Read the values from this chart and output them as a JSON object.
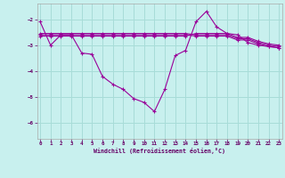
{
  "background_color": "#c8f0ee",
  "grid_color": "#a8dcd8",
  "line_color": "#990099",
  "xlabel": "Windchill (Refroidissement éolien,°C)",
  "xlim": [
    -0.3,
    23.3
  ],
  "ylim": [
    -6.6,
    -1.4
  ],
  "yticks": [
    -6,
    -5,
    -4,
    -3,
    -2
  ],
  "xticks": [
    0,
    1,
    2,
    3,
    4,
    5,
    6,
    7,
    8,
    9,
    10,
    11,
    12,
    13,
    14,
    15,
    16,
    17,
    18,
    19,
    20,
    21,
    22,
    23
  ],
  "x": [
    0,
    1,
    2,
    3,
    4,
    5,
    6,
    7,
    8,
    9,
    10,
    11,
    12,
    13,
    14,
    15,
    16,
    17,
    18,
    19,
    20,
    21,
    22,
    23
  ],
  "y_main": [
    -2.1,
    -3.0,
    -2.6,
    -2.6,
    -3.3,
    -3.35,
    -4.2,
    -4.5,
    -4.7,
    -5.05,
    -5.2,
    -5.55,
    -4.7,
    -3.4,
    -3.2,
    -2.1,
    -1.7,
    -2.3,
    -2.55,
    -2.6,
    -2.9,
    -3.0,
    -3.05,
    -3.1
  ],
  "y_flat1": [
    -2.55,
    -2.55,
    -2.55,
    -2.55,
    -2.55,
    -2.55,
    -2.55,
    -2.55,
    -2.55,
    -2.55,
    -2.55,
    -2.55,
    -2.55,
    -2.55,
    -2.55,
    -2.6,
    -2.6,
    -2.6,
    -2.6,
    -2.75,
    -2.75,
    -2.9,
    -3.0,
    -3.05
  ],
  "y_flat2": [
    -2.6,
    -2.6,
    -2.6,
    -2.6,
    -2.6,
    -2.6,
    -2.6,
    -2.6,
    -2.6,
    -2.6,
    -2.6,
    -2.6,
    -2.6,
    -2.6,
    -2.6,
    -2.65,
    -2.65,
    -2.65,
    -2.65,
    -2.8,
    -2.8,
    -2.95,
    -3.05,
    -3.1
  ],
  "y_flat3": [
    -2.65,
    -2.65,
    -2.65,
    -2.65,
    -2.65,
    -2.65,
    -2.65,
    -2.65,
    -2.65,
    -2.65,
    -2.65,
    -2.65,
    -2.65,
    -2.65,
    -2.65,
    -2.55,
    -2.55,
    -2.55,
    -2.55,
    -2.7,
    -2.7,
    -2.85,
    -2.95,
    -3.0
  ]
}
